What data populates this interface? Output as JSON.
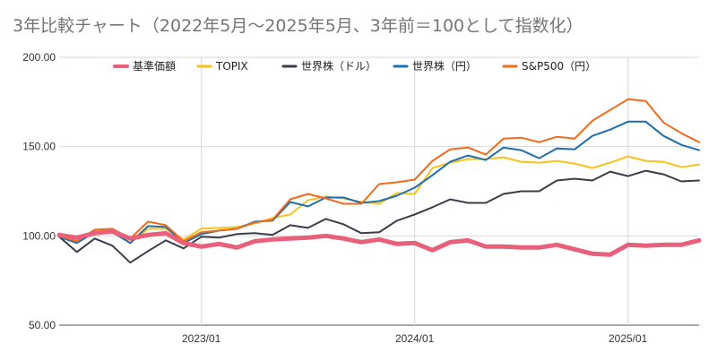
{
  "chart_data": {
    "type": "line",
    "title": "3年比較チャート（2022年5月〜2025年5月、3年前＝100として指数化）",
    "xlabel": "",
    "ylabel": "",
    "ylim": [
      50,
      200
    ],
    "yticks": [
      "50.00",
      "100.00",
      "150.00",
      "200.00"
    ],
    "x_tick_labels": [
      {
        "label": "2023/01",
        "index": 8
      },
      {
        "label": "2024/01",
        "index": 20
      },
      {
        "label": "2025/01",
        "index": 32
      }
    ],
    "x": [
      "2022/05",
      "2022/06",
      "2022/07",
      "2022/08",
      "2022/09",
      "2022/10",
      "2022/11",
      "2022/12",
      "2023/01",
      "2023/02",
      "2023/03",
      "2023/04",
      "2023/05",
      "2023/06",
      "2023/07",
      "2023/08",
      "2023/09",
      "2023/10",
      "2023/11",
      "2023/12",
      "2024/01",
      "2024/02",
      "2024/03",
      "2024/04",
      "2024/05",
      "2024/06",
      "2024/07",
      "2024/08",
      "2024/09",
      "2024/10",
      "2024/11",
      "2024/12",
      "2025/01",
      "2025/02",
      "2025/03",
      "2025/04",
      "2025/05"
    ],
    "legend_position": "top",
    "grid": true,
    "series": [
      {
        "name": "基準価額",
        "color": "#e8607a",
        "width": 5,
        "values": [
          100.5,
          99,
          101.5,
          102.5,
          98.5,
          100.5,
          101.5,
          96,
          94,
          95.5,
          93.5,
          97,
          98,
          98.5,
          99,
          100,
          98.5,
          96.5,
          98,
          95.5,
          96,
          92,
          96.5,
          97.5,
          94,
          94,
          93.5,
          93.5,
          95,
          92.5,
          90,
          89.5,
          95,
          94.5,
          95,
          95,
          97.5
        ]
      },
      {
        "name": "TOPIX",
        "color": "#f9c21d",
        "width": 2,
        "values": [
          100,
          98,
          101,
          103,
          96,
          104,
          104,
          98,
          104,
          104.5,
          105,
          107,
          110,
          112,
          120,
          122,
          121,
          119,
          118,
          124,
          123.5,
          138,
          141,
          143,
          143,
          144,
          141.5,
          141,
          142,
          140.5,
          138,
          141,
          144.5,
          142,
          141.5,
          138.5,
          140
        ]
      },
      {
        "name": "世界株（ドル）",
        "color": "#3c3c4a",
        "width": 2,
        "values": [
          99.5,
          91,
          98.5,
          94.5,
          85,
          91.5,
          97.5,
          93,
          99.5,
          99,
          101,
          101.5,
          100.5,
          106,
          104.5,
          109.5,
          106.5,
          101.5,
          102,
          108.5,
          112,
          116,
          120.5,
          118.5,
          118.5,
          123.5,
          125,
          125,
          131,
          132,
          131,
          136,
          133.5,
          136.5,
          134.5,
          130.5,
          131
        ]
      },
      {
        "name": "世界株（円）",
        "color": "#1f6fae",
        "width": 2,
        "values": [
          99.5,
          96,
          102,
          102,
          96,
          105.5,
          105,
          96,
          101,
          103,
          104,
          108,
          108.5,
          119,
          116.5,
          121.5,
          121.5,
          118.5,
          119.5,
          122.5,
          127,
          134,
          141.5,
          145,
          142.5,
          149.5,
          148,
          143.5,
          149,
          148.5,
          156,
          159.5,
          164,
          164,
          156,
          151,
          148
        ]
      },
      {
        "name": "S&P500（円）",
        "color": "#f26a1b",
        "width": 2,
        "values": [
          100,
          97,
          103.5,
          104,
          98.5,
          108,
          106,
          97,
          102,
          103,
          104,
          107.5,
          109,
          120.5,
          123.5,
          121,
          118,
          118,
          129,
          130,
          131.5,
          142,
          148.5,
          149.5,
          145.5,
          154.5,
          155,
          152.5,
          155.5,
          154.5,
          164.5,
          170.5,
          176.5,
          175.5,
          163.5,
          157.5,
          152.5
        ]
      }
    ]
  }
}
